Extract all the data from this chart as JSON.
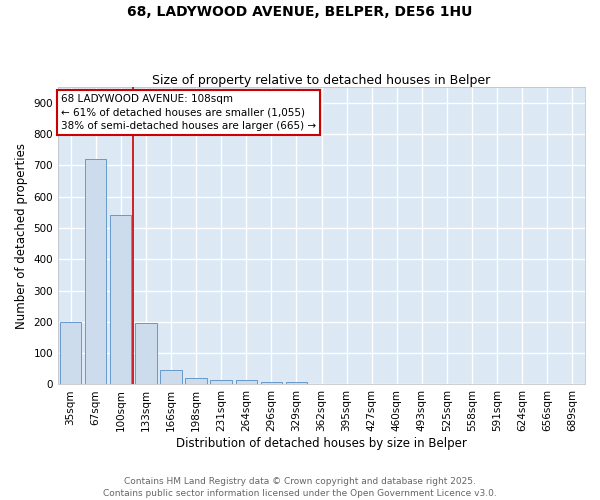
{
  "title_line1": "68, LADYWOOD AVENUE, BELPER, DE56 1HU",
  "title_line2": "Size of property relative to detached houses in Belper",
  "xlabel": "Distribution of detached houses by size in Belper",
  "ylabel": "Number of detached properties",
  "categories": [
    "35sqm",
    "67sqm",
    "100sqm",
    "133sqm",
    "166sqm",
    "198sqm",
    "231sqm",
    "264sqm",
    "296sqm",
    "329sqm",
    "362sqm",
    "395sqm",
    "427sqm",
    "460sqm",
    "493sqm",
    "525sqm",
    "558sqm",
    "591sqm",
    "624sqm",
    "656sqm",
    "689sqm"
  ],
  "values": [
    200,
    720,
    540,
    196,
    47,
    20,
    15,
    13,
    8,
    7,
    0,
    0,
    0,
    0,
    0,
    0,
    0,
    0,
    0,
    0,
    0
  ],
  "bar_color": "#ccdcec",
  "bar_edge_color": "#6699cc",
  "red_line_x": 2.5,
  "red_line_color": "#cc0000",
  "annotation_text": "68 LADYWOOD AVENUE: 108sqm\n← 61% of detached houses are smaller (1,055)\n38% of semi-detached houses are larger (665) →",
  "annotation_box_facecolor": "#ffffff",
  "annotation_box_edgecolor": "#cc0000",
  "ylim": [
    0,
    950
  ],
  "yticks": [
    0,
    100,
    200,
    300,
    400,
    500,
    600,
    700,
    800,
    900
  ],
  "plot_bg_color": "#dce8f4",
  "fig_bg_color": "#ffffff",
  "grid_color": "#ffffff",
  "footer_line1": "Contains HM Land Registry data © Crown copyright and database right 2025.",
  "footer_line2": "Contains public sector information licensed under the Open Government Licence v3.0.",
  "title_fontsize": 10,
  "subtitle_fontsize": 9,
  "axis_label_fontsize": 8.5,
  "tick_fontsize": 7.5,
  "annotation_fontsize": 7.5,
  "footer_fontsize": 6.5
}
